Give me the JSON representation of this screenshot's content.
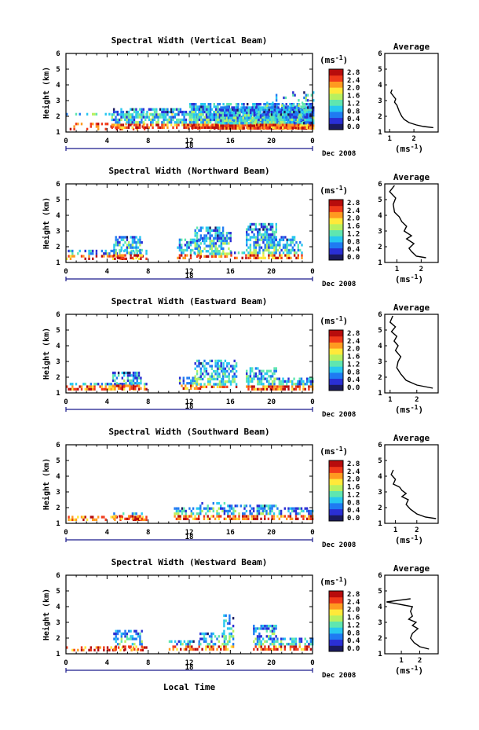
{
  "figure": {
    "xlabel": "Local Time",
    "date_label": "Dec 2008",
    "day_label": "18",
    "ylabel": "Height (km)",
    "unit_label": "(ms",
    "unit_sup": "-1",
    "avg_title": "Average",
    "x_ticks": [
      "0",
      "4",
      "8",
      "12",
      "16",
      "20",
      "0"
    ],
    "y_ticks": [
      "1",
      "2",
      "3",
      "4",
      "5",
      "6"
    ]
  },
  "colorbar": {
    "ticks": [
      "2.8",
      "2.4",
      "2.0",
      "1.6",
      "1.2",
      "0.8",
      "0.4",
      "0.0"
    ],
    "colors": [
      "#1a1a5e",
      "#2a2fd4",
      "#1f7bf2",
      "#27c8f0",
      "#5fe6b0",
      "#b8f060",
      "#ffe93a",
      "#ff9a20",
      "#f03a1a",
      "#b80c0c"
    ]
  },
  "chart_data": [
    {
      "type": "heatmap",
      "title": "Spectral Width (Vertical Beam)",
      "xlim": [
        0,
        24
      ],
      "ylim": [
        1,
        6
      ],
      "clim": [
        0,
        2.8
      ],
      "avg": {
        "xticks": [
          "1",
          "2"
        ],
        "xlim": [
          0.8,
          3.0
        ],
        "x": [
          1.1,
          1.05,
          1.15,
          1.25,
          1.2,
          1.3,
          1.35,
          1.4,
          1.5,
          1.6,
          1.8,
          2.1,
          2.4,
          2.8
        ],
        "y": [
          3.7,
          3.5,
          3.3,
          3.1,
          2.9,
          2.7,
          2.5,
          2.3,
          2.0,
          1.8,
          1.6,
          1.45,
          1.35,
          1.28
        ]
      }
    },
    {
      "type": "heatmap",
      "title": "Spectral Width (Northward Beam)",
      "xlim": [
        0,
        24
      ],
      "ylim": [
        1,
        6
      ],
      "clim": [
        0,
        2.8
      ],
      "avg": {
        "xticks": [
          "1",
          "2"
        ],
        "xlim": [
          0.5,
          2.7
        ],
        "x": [
          0.9,
          0.7,
          0.95,
          0.85,
          0.9,
          1.1,
          1.2,
          1.4,
          1.3,
          1.6,
          1.4,
          1.7,
          1.5,
          1.6,
          1.8,
          2.2
        ],
        "y": [
          5.9,
          5.5,
          5.1,
          4.7,
          4.2,
          3.9,
          3.6,
          3.3,
          3.0,
          2.7,
          2.5,
          2.2,
          1.9,
          1.7,
          1.4,
          1.3
        ]
      }
    },
    {
      "type": "heatmap",
      "title": "Spectral Width (Eastward Beam)",
      "xlim": [
        0,
        24
      ],
      "ylim": [
        1,
        6
      ],
      "clim": [
        0,
        2.8
      ],
      "avg": {
        "xticks": [
          "1",
          "2"
        ],
        "xlim": [
          0.8,
          2.8
        ],
        "x": [
          1.1,
          1.0,
          1.2,
          1.05,
          1.25,
          1.15,
          1.3,
          1.2,
          1.4,
          1.3,
          1.25,
          1.4,
          1.6,
          2.0,
          2.6
        ],
        "y": [
          5.9,
          5.5,
          5.2,
          4.9,
          4.6,
          4.3,
          4.0,
          3.7,
          3.3,
          3.0,
          2.6,
          2.2,
          1.8,
          1.5,
          1.3
        ]
      }
    },
    {
      "type": "heatmap",
      "title": "Spectral Width (Southward Beam)",
      "xlim": [
        0,
        24
      ],
      "ylim": [
        1,
        6
      ],
      "clim": [
        0,
        2.8
      ],
      "avg": {
        "xticks": [
          "1",
          "2"
        ],
        "xlim": [
          0.5,
          3.0
        ],
        "x": [
          0.9,
          0.8,
          1.0,
          0.9,
          1.2,
          1.3,
          1.5,
          1.3,
          1.6,
          1.5,
          1.7,
          2.0,
          2.4,
          2.9
        ],
        "y": [
          4.4,
          4.1,
          3.8,
          3.5,
          3.3,
          3.1,
          2.9,
          2.7,
          2.5,
          2.2,
          1.9,
          1.6,
          1.4,
          1.3
        ]
      }
    },
    {
      "type": "heatmap",
      "title": "Spectral Width (Westward Beam)",
      "xlim": [
        0,
        24
      ],
      "ylim": [
        1,
        6
      ],
      "clim": [
        0,
        2.8
      ],
      "avg": {
        "xticks": [
          "1",
          "2"
        ],
        "xlim": [
          0.1,
          3.0
        ],
        "x": [
          1.5,
          0.2,
          1.6,
          1.5,
          1.6,
          1.4,
          1.8,
          1.6,
          1.9,
          1.6,
          1.5,
          1.7,
          2.0,
          2.5
        ],
        "y": [
          4.5,
          4.3,
          4.0,
          3.7,
          3.4,
          3.2,
          3.0,
          2.8,
          2.6,
          2.3,
          2.0,
          1.7,
          1.45,
          1.3
        ]
      }
    }
  ]
}
